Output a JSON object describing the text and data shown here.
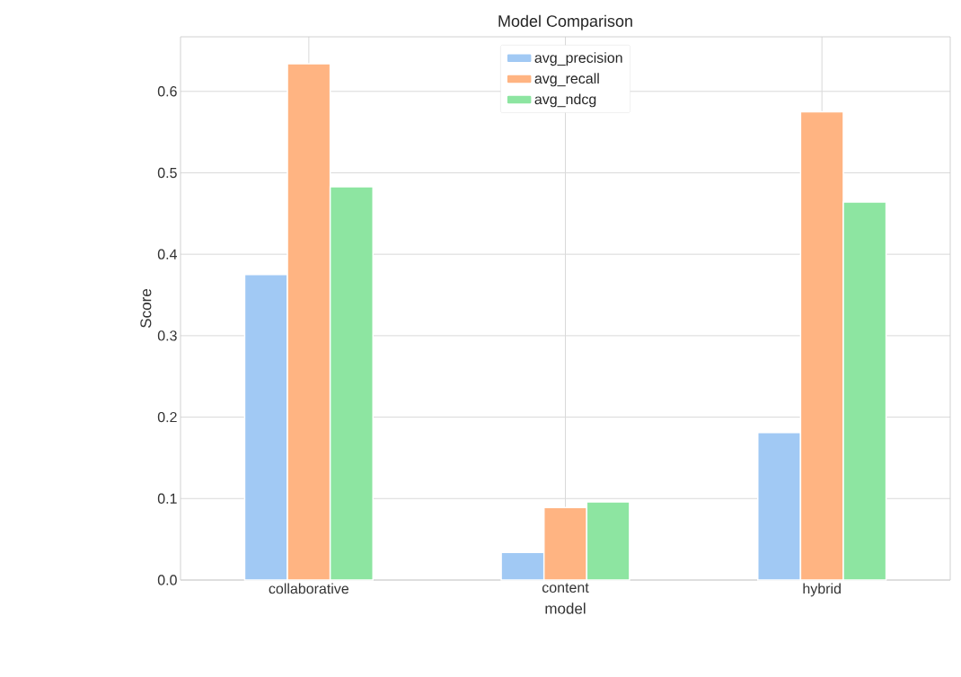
{
  "chart_data": {
    "type": "bar",
    "title": "Model Comparison",
    "xlabel": "model",
    "ylabel": "Score",
    "categories": [
      "collaborative",
      "content",
      "hybrid"
    ],
    "series": [
      {
        "name": "avg_precision",
        "color": "#a1c9f4",
        "values": [
          0.375,
          0.034,
          0.181
        ]
      },
      {
        "name": "avg_recall",
        "color": "#ffb482",
        "values": [
          0.634,
          0.089,
          0.575
        ]
      },
      {
        "name": "avg_ndcg",
        "color": "#8de5a1",
        "values": [
          0.483,
          0.096,
          0.464
        ]
      }
    ],
    "ylim": [
      0,
      0.667
    ],
    "yticks": [
      {
        "value": 0,
        "label": "0.0"
      },
      0.1,
      0.2,
      0.3,
      0.4,
      0.5,
      0.6
    ],
    "grid": true,
    "legend": "top"
  }
}
